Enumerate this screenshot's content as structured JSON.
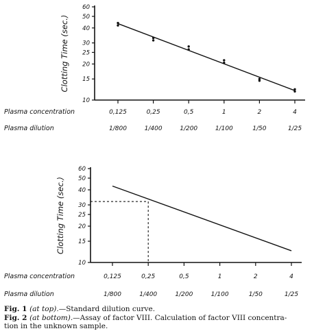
{
  "chart_data": [
    {
      "type": "line",
      "title": "",
      "ylabel": "Clotting Time (sec.)",
      "yscale": "log",
      "ylim": [
        10,
        60
      ],
      "yticks": [
        10,
        15,
        20,
        25,
        30,
        40,
        50,
        60
      ],
      "categories": [
        "0.125",
        "0.25",
        "0.5",
        "1",
        "2",
        "4"
      ],
      "category_labels": [
        "0,125",
        "0,25",
        "0,5",
        "1",
        "2",
        "4"
      ],
      "category_label": "Plasma concentration",
      "dilutions": [
        "1/800",
        "1/400",
        "1/200",
        "1/100",
        "1/50",
        "1/25"
      ],
      "dilution_label": "Plasma dilution",
      "fit_line": {
        "x_start": "0.125",
        "x_end": "4",
        "y_start": 43.5,
        "y_end": 12
      },
      "series": [
        {
          "points": [
            {
              "x": "0.125",
              "y": 44
            },
            {
              "x": "0.125",
              "y": 42
            },
            {
              "x": "0.25",
              "y": 33
            },
            {
              "x": "0.25",
              "y": 31.5
            },
            {
              "x": "0.5",
              "y": 28
            },
            {
              "x": "0.5",
              "y": 26.5
            },
            {
              "x": "1",
              "y": 21.5
            },
            {
              "x": "1",
              "y": 20.5
            },
            {
              "x": "2",
              "y": 15
            },
            {
              "x": "2",
              "y": 14.5
            },
            {
              "x": "4",
              "y": 12.3
            },
            {
              "x": "4",
              "y": 11.8
            }
          ]
        }
      ],
      "grid": false
    },
    {
      "type": "line",
      "title": "",
      "ylabel": "Clotting Time (sec.)",
      "yscale": "log",
      "ylim": [
        10,
        60
      ],
      "yticks": [
        10,
        15,
        20,
        25,
        30,
        40,
        50,
        60
      ],
      "categories": [
        "0.125",
        "0.25",
        "0.5",
        "1",
        "2",
        "4"
      ],
      "category_labels": [
        "0,125",
        "0,25",
        "0,5",
        "1",
        "2",
        "4"
      ],
      "category_label": "Plasma concentration",
      "dilutions": [
        "1/800",
        "1/400",
        "1/200",
        "1/100",
        "1/50",
        "1/25"
      ],
      "dilution_label": "Plasma dilution",
      "fit_line": {
        "x_start": "0.125",
        "x_end": "4",
        "y_start": 43,
        "y_end": 12.5
      },
      "reading": {
        "x": "0.25",
        "y": 32
      },
      "grid": false
    }
  ],
  "captions": {
    "fig1_prefix": "Fig. 1 ",
    "fig1_note": "(at top).",
    "fig1_text": "—Standard dilution curve.",
    "fig2_prefix": "Fig. 2 ",
    "fig2_note": "(at bottom).",
    "fig2_text": "—Assay of factor VIII. Calculation of factor VIII concentra-",
    "fig2_cont": "tion in the unknown sample."
  }
}
